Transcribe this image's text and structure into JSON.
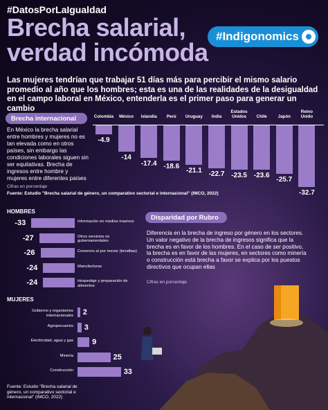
{
  "header": {
    "hashtag": "#DatosPorLaIgualdad",
    "title_line1": "Brecha salarial,",
    "title_line2": "verdad incómoda",
    "badge": "#Indigonomics"
  },
  "intro": "Las mujeres tendrían que trabajar 51 días más para percibir el mismo salario promedio al año que los hombres; esta es una de las realidades de la desigualdad en el campo laboral en México, entenderla es el primer paso para generar un cambio",
  "intl": {
    "pill": "Brecha internacional",
    "text": "En México la brecha salarial entre hombres y mujeres no es tan elevada como en otros países, sin embargo las condiciones laborales siguen sin ser equitativas. Brecha de ingresos entre hombre y mujeres entre diferentes países",
    "unit": "Cifras en porcentaje",
    "source": "Fuente: Estudio \"Brecha salarial de género, un comparativo sectorial e internacional\" (IMCO, 2022)"
  },
  "rubro": {
    "pill": "Disparidad por Rubro",
    "text": "Diferencia en la brecha de ingreso por género en los sectores. Un valor negativo de la brecha de ingresos significa que la brecha es en favor de los hombres. En el caso de ser positivo, la brecha es en favor de las mujeres, en sectores como minería o construcción está brecha a favor se explica por los puestos directivos que ocupan ellas",
    "unit": "Cifras en porcentaje"
  },
  "men_title": "HOMBRES",
  "women_title": "MUJERES",
  "source_bottom": "Fuente: Estudio \"Brecha salarial de género, un comparativo sectorial e internacional\" (IMCO, 2022)",
  "colors": {
    "bar": "#9a7cc9",
    "badge": "#1a8fd6",
    "title": "#c8b6e6"
  },
  "chart_data": [
    {
      "type": "bar",
      "categories": [
        "Colombia",
        "México",
        "Islandia",
        "Perú",
        "Uruguay",
        "India",
        "Estados Unidos",
        "Chile",
        "Japón",
        "Reino Unido"
      ],
      "values": [
        -4.9,
        -14,
        -17.4,
        -18.6,
        -21.1,
        -22.7,
        -23.5,
        -23.6,
        -25.7,
        -32.7
      ],
      "labels": [
        "-4.9",
        "-14",
        "-17.4",
        "-18.6",
        "-21.1",
        "-22.7",
        "-23.5",
        "-23.6",
        "-25.7",
        "-32.7"
      ]
    },
    {
      "type": "bar",
      "categories": [
        "Información en medios masivos",
        "Otros servicios no gubernamentales",
        "Comercio al por menor (tienditas)",
        "Manufacturas",
        "Hospedaje y preparación de alimentos"
      ],
      "values": [
        -33,
        -27,
        -26,
        -24,
        -24
      ],
      "labels": [
        "-33",
        "-27",
        "-26",
        "-24",
        "-24"
      ]
    },
    {
      "type": "bar",
      "categories": [
        "Gobierno y organismos internacionales",
        "Agropecuarios",
        "Electricidad, agua y gas",
        "Minería",
        "Construcción"
      ],
      "values": [
        2,
        3,
        9,
        25,
        33
      ],
      "labels": [
        "2",
        "3",
        "9",
        "25",
        "33"
      ]
    }
  ]
}
